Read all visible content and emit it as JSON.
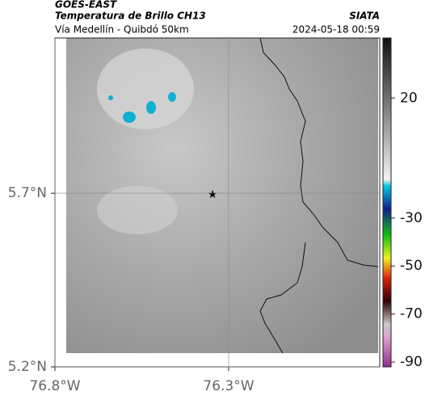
{
  "header": {
    "satellite": "GOES-EAST",
    "title": "Temperatura de Brillo CH13",
    "source": "SIATA",
    "subtitle": "Vía Medellín - Quibdó 50km",
    "datetime": "2024-05-18 00:59"
  },
  "map": {
    "xlim": [
      -76.8,
      -75.865
    ],
    "ylim": [
      5.2,
      6.147
    ],
    "xticks": [
      {
        "value": -76.8,
        "label": "76.8°W"
      },
      {
        "value": -76.3,
        "label": "76.3°W"
      }
    ],
    "yticks": [
      {
        "value": 5.7,
        "label": "5.7°N"
      },
      {
        "value": 5.2,
        "label": "5.2°N"
      }
    ],
    "grid": true
  },
  "colorbar": {
    "clim": [
      -92,
      45
    ],
    "ticks": [
      20,
      -30,
      -50,
      -70,
      -90
    ]
  }
}
